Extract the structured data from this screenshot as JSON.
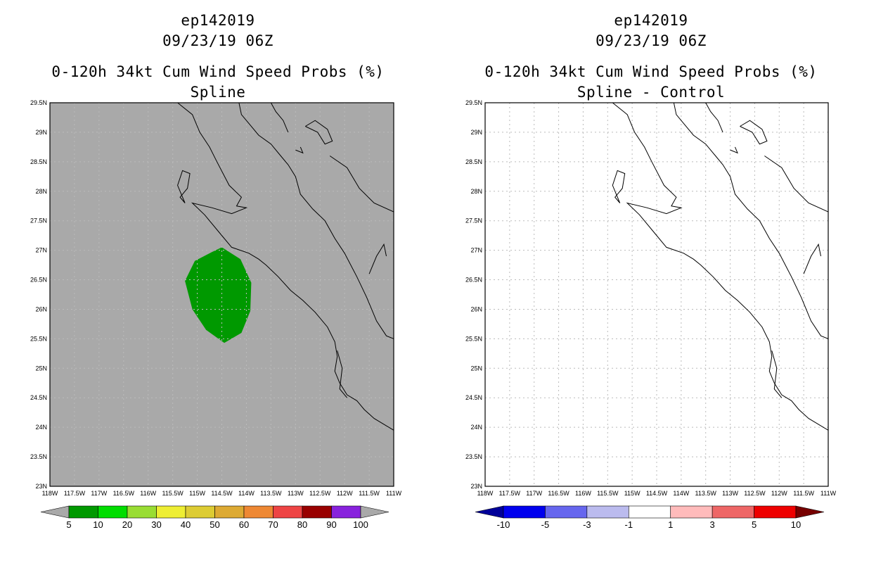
{
  "panels": [
    {
      "id": "left",
      "title_lines": [
        "ep142019",
        "09/23/19 06Z",
        "0-120h 34kt Cum Wind Speed Probs (%)",
        "Spline"
      ],
      "background": "#a9a9a9",
      "probability_area": {
        "label": "5-10%",
        "color": "#009900",
        "polygon_lonlat": [
          [
            -114.5,
            27.05
          ],
          [
            -114.12,
            26.85
          ],
          [
            -113.9,
            26.45
          ],
          [
            -113.92,
            25.97
          ],
          [
            -114.1,
            25.6
          ],
          [
            -114.45,
            25.43
          ],
          [
            -114.82,
            25.65
          ],
          [
            -115.1,
            26.0
          ],
          [
            -115.25,
            26.48
          ],
          [
            -115.05,
            26.82
          ],
          [
            -114.7,
            26.97
          ]
        ]
      },
      "colorbar": {
        "type": "one-sided",
        "lower_arrow_color": "#a9a9a9",
        "upper_arrow_color": "#a9a9a9",
        "colors": [
          "#009900",
          "#00dd00",
          "#99dd33",
          "#eeee33",
          "#ddcc33",
          "#ddaa33",
          "#ee8833",
          "#ee4444",
          "#990000",
          "#8822dd"
        ],
        "labels": [
          "5",
          "10",
          "20",
          "30",
          "40",
          "50",
          "60",
          "70",
          "80",
          "90",
          "100"
        ]
      }
    },
    {
      "id": "right",
      "title_lines": [
        "ep142019",
        "09/23/19 06Z",
        "0-120h 34kt Cum Wind Speed Probs (%)",
        "Spline - Control"
      ],
      "background": "#ffffff",
      "colorbar": {
        "type": "two-sided",
        "lower_arrow_color": "#000099",
        "upper_arrow_color": "#770000",
        "colors": [
          "#0000ee",
          "#6666ee",
          "#bbbbee",
          "#ffffff",
          "#ffbbbb",
          "#ee6666",
          "#ee0000"
        ],
        "labels": [
          "-10",
          "-5",
          "-3",
          "-1",
          "1",
          "3",
          "5",
          "10"
        ]
      }
    }
  ],
  "map": {
    "lon_range": [
      -118,
      -111
    ],
    "lat_range": [
      23,
      29.5
    ],
    "lon_ticks": [
      "118W",
      "117.5W",
      "117W",
      "116.5W",
      "116W",
      "115.5W",
      "115W",
      "114.5W",
      "114W",
      "113.5W",
      "113W",
      "112.5W",
      "112W",
      "111.5W",
      "111W"
    ],
    "lat_ticks": [
      "23N",
      "23.5N",
      "24N",
      "24.5N",
      "25N",
      "25.5N",
      "26N",
      "26.5N",
      "27N",
      "27.5N",
      "28N",
      "28.5N",
      "29N",
      "29.5N"
    ],
    "grid_color": "#bbbbbb",
    "coast_color": "#000000",
    "coastlines": [
      [
        [
          -115.4,
          29.5
        ],
        [
          -115.1,
          29.3
        ],
        [
          -114.95,
          29.0
        ],
        [
          -114.75,
          28.75
        ],
        [
          -114.6,
          28.5
        ],
        [
          -114.35,
          28.1
        ],
        [
          -114.1,
          27.9
        ],
        [
          -114.2,
          27.75
        ],
        [
          -114.0,
          27.72
        ],
        [
          -114.3,
          27.62
        ],
        [
          -114.7,
          27.72
        ],
        [
          -115.1,
          27.8
        ],
        [
          -114.85,
          27.6
        ],
        [
          -114.55,
          27.3
        ],
        [
          -114.3,
          27.05
        ],
        [
          -113.95,
          26.95
        ],
        [
          -113.75,
          26.85
        ],
        [
          -113.6,
          26.75
        ],
        [
          -113.35,
          26.55
        ],
        [
          -113.1,
          26.32
        ],
        [
          -112.85,
          26.15
        ],
        [
          -112.6,
          25.95
        ],
        [
          -112.35,
          25.7
        ],
        [
          -112.2,
          25.45
        ],
        [
          -112.15,
          25.2
        ],
        [
          -112.2,
          24.95
        ],
        [
          -112.1,
          24.75
        ],
        [
          -111.95,
          24.55
        ],
        [
          -111.75,
          24.45
        ],
        [
          -111.6,
          24.3
        ],
        [
          -111.4,
          24.15
        ],
        [
          -111.0,
          23.95
        ]
      ],
      [
        [
          -115.25,
          27.8
        ],
        [
          -115.35,
          27.9
        ],
        [
          -115.2,
          28.05
        ],
        [
          -115.15,
          28.3
        ],
        [
          -115.3,
          28.35
        ],
        [
          -115.4,
          28.1
        ],
        [
          -115.25,
          27.8
        ]
      ],
      [
        [
          -114.15,
          29.5
        ],
        [
          -114.1,
          29.3
        ],
        [
          -113.95,
          29.15
        ],
        [
          -113.75,
          28.95
        ],
        [
          -113.5,
          28.8
        ],
        [
          -113.3,
          28.6
        ],
        [
          -113.15,
          28.45
        ],
        [
          -113.0,
          28.25
        ],
        [
          -112.9,
          27.95
        ],
        [
          -112.65,
          27.7
        ],
        [
          -112.4,
          27.5
        ],
        [
          -112.2,
          27.2
        ],
        [
          -112.0,
          26.95
        ],
        [
          -111.75,
          26.55
        ],
        [
          -111.55,
          26.2
        ],
        [
          -111.35,
          25.8
        ],
        [
          -111.15,
          25.55
        ],
        [
          -111.0,
          25.5
        ]
      ],
      [
        [
          -113.5,
          29.5
        ],
        [
          -113.4,
          29.35
        ],
        [
          -113.25,
          29.2
        ],
        [
          -113.15,
          29.0
        ]
      ],
      [
        [
          -112.8,
          29.1
        ],
        [
          -112.55,
          29.0
        ],
        [
          -112.4,
          28.8
        ],
        [
          -112.25,
          28.85
        ],
        [
          -112.35,
          29.05
        ],
        [
          -112.6,
          29.2
        ],
        [
          -112.8,
          29.1
        ]
      ],
      [
        [
          -113.0,
          28.7
        ],
        [
          -112.85,
          28.65
        ],
        [
          -112.9,
          28.75
        ]
      ],
      [
        [
          -112.3,
          28.6
        ],
        [
          -111.95,
          28.4
        ],
        [
          -111.7,
          28.05
        ],
        [
          -111.4,
          27.8
        ],
        [
          -111.0,
          27.65
        ]
      ],
      [
        [
          -111.5,
          26.6
        ],
        [
          -111.35,
          26.9
        ],
        [
          -111.2,
          27.1
        ],
        [
          -111.15,
          26.9
        ]
      ],
      [
        [
          -112.15,
          25.3
        ],
        [
          -112.05,
          25.0
        ],
        [
          -112.1,
          24.65
        ],
        [
          -111.95,
          24.5
        ]
      ]
    ]
  }
}
